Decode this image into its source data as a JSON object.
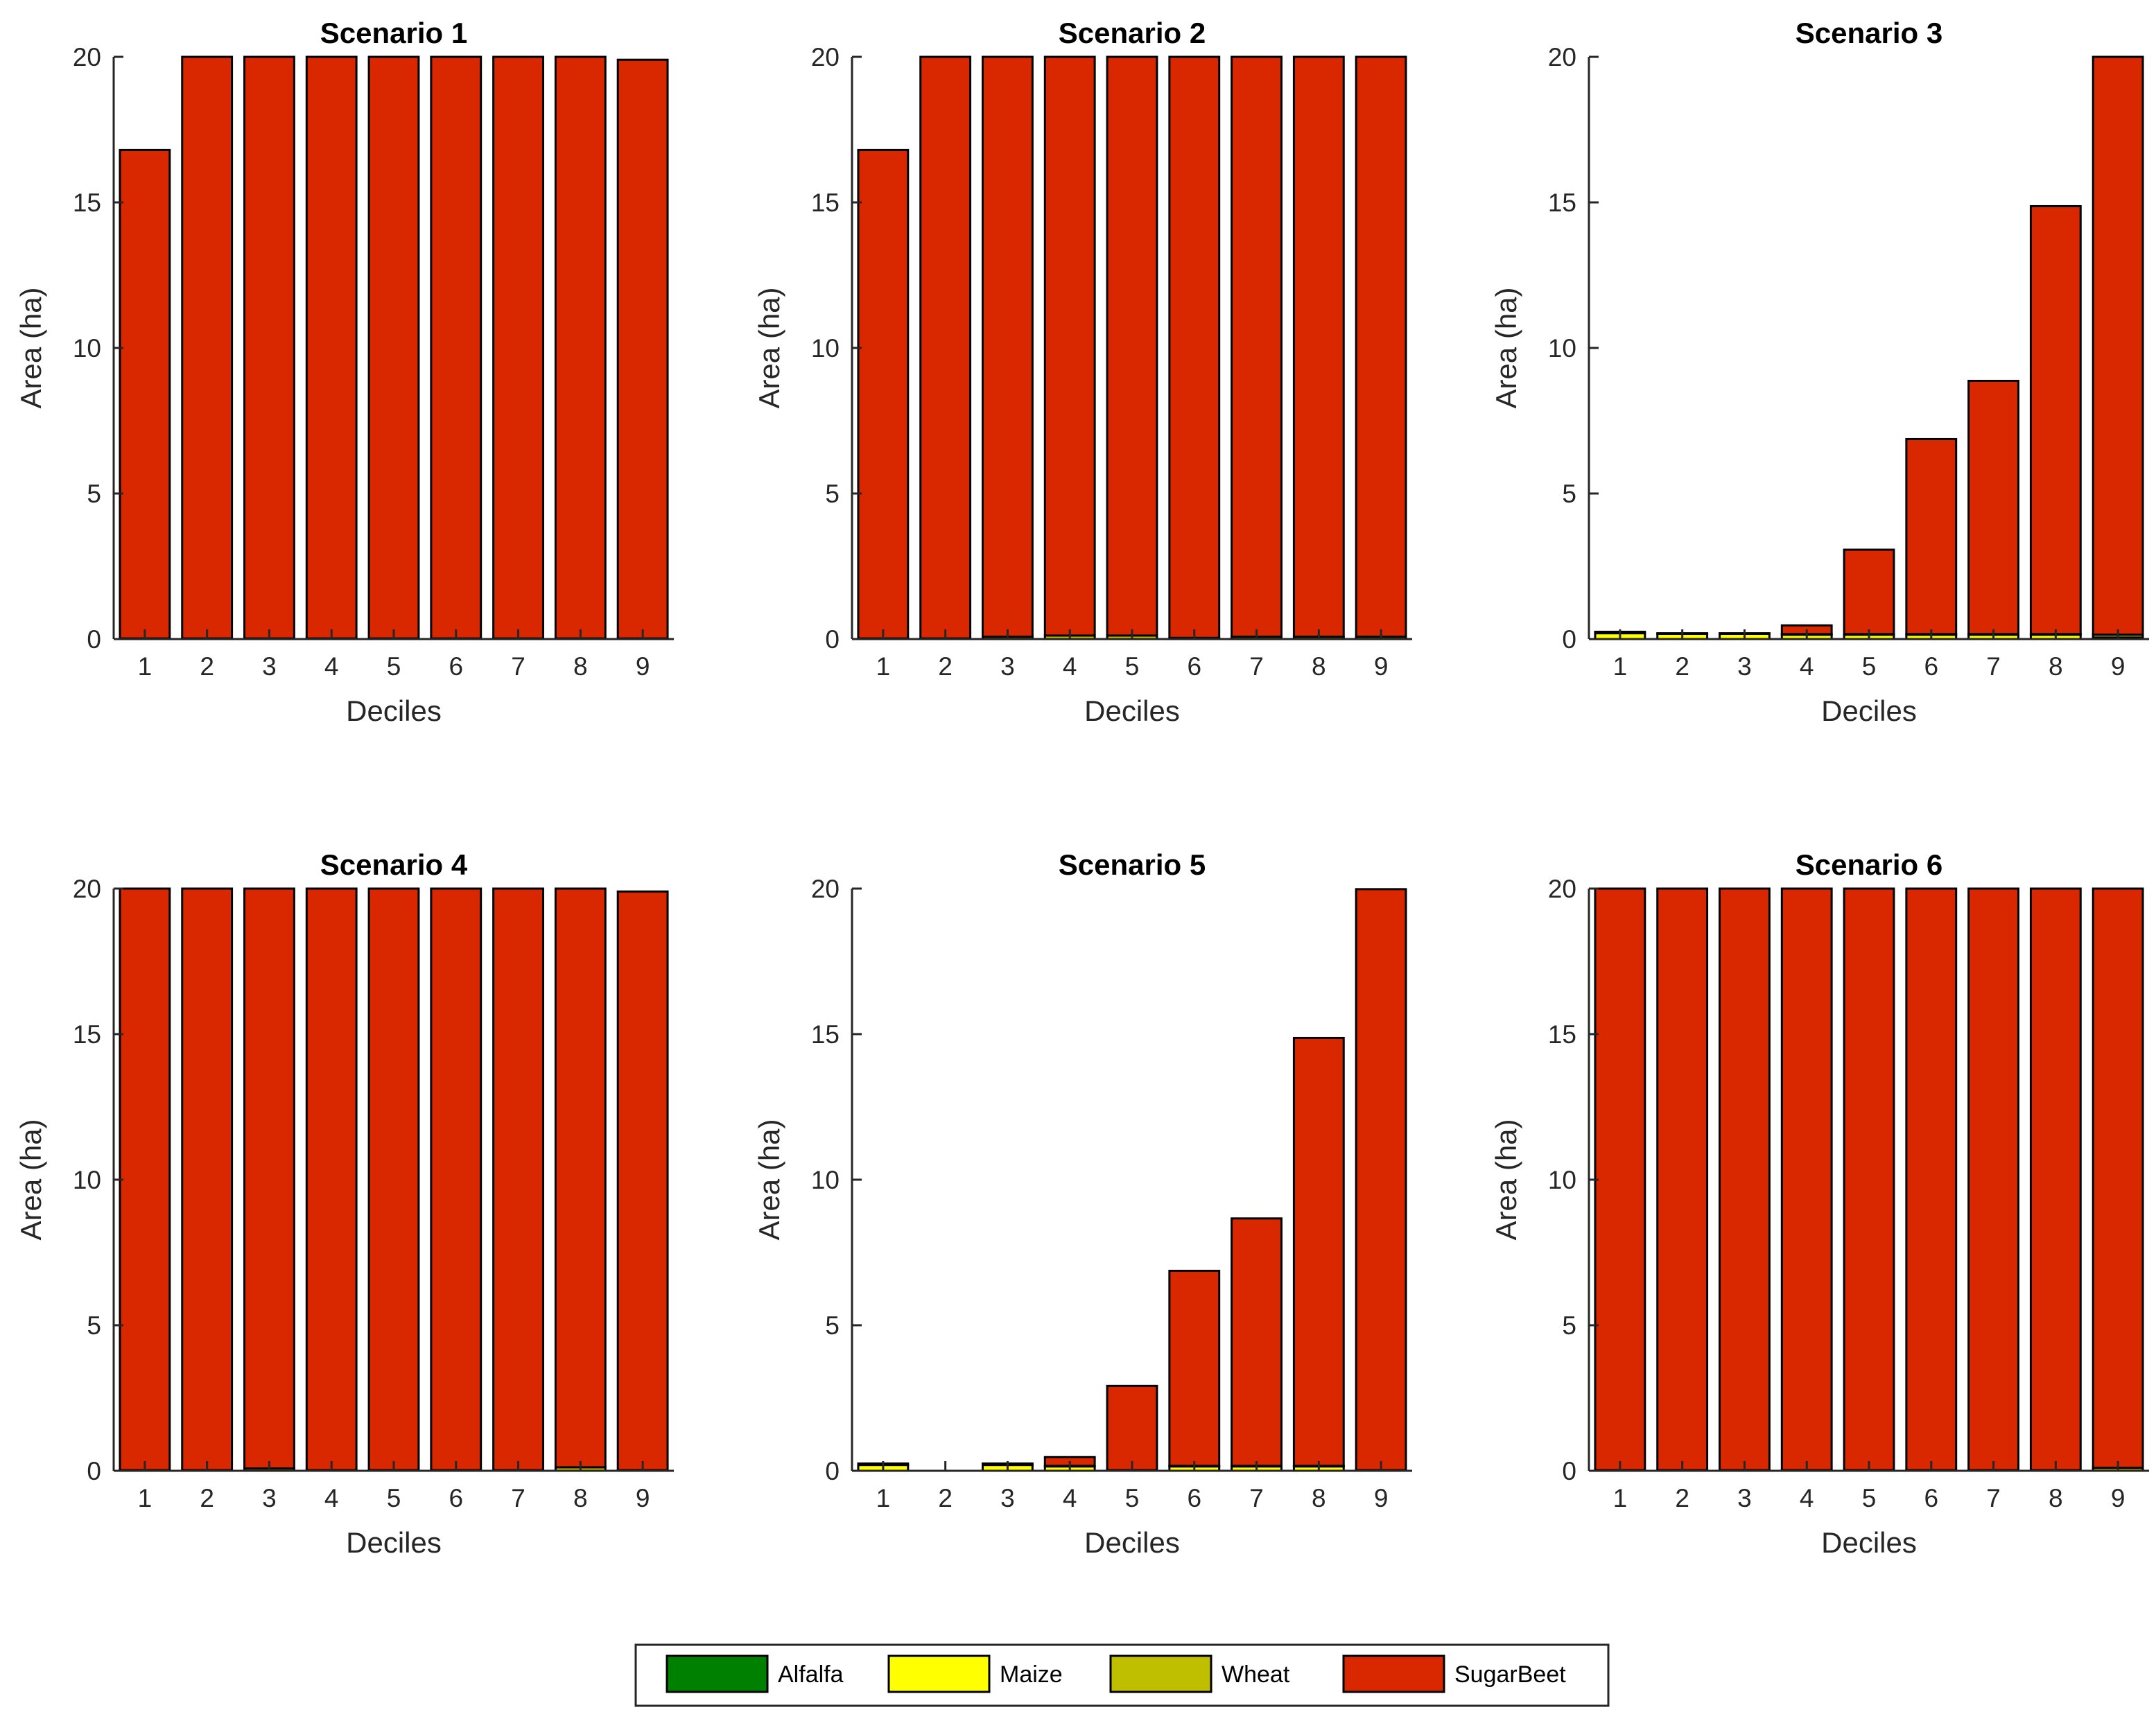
{
  "colors": {
    "Alfalfa": "#008000",
    "Maize": "#ffff00",
    "Wheat": "#bfbf00",
    "SugarBeet": "#d92800"
  },
  "legend": {
    "placement": "bottom-center",
    "entries": [
      "Alfalfa",
      "Maize",
      "Wheat",
      "SugarBeet"
    ]
  },
  "chart_data": [
    {
      "type": "bar",
      "stacked": true,
      "title": "Scenario 1",
      "xlabel": "Deciles",
      "ylabel": "Area (ha)",
      "ylim": [
        0,
        20
      ],
      "yticks": [
        0,
        5,
        10,
        15,
        20
      ],
      "categories": [
        "1",
        "2",
        "3",
        "4",
        "5",
        "6",
        "7",
        "8",
        "9"
      ],
      "series": [
        {
          "name": "Alfalfa",
          "values": [
            0,
            0,
            0,
            0,
            0,
            0,
            0,
            0,
            0
          ]
        },
        {
          "name": "Maize",
          "values": [
            0,
            0,
            0,
            0,
            0,
            0,
            0,
            0,
            0
          ]
        },
        {
          "name": "Wheat",
          "values": [
            0.02,
            0.02,
            0.02,
            0.02,
            0.02,
            0.02,
            0.02,
            0.02,
            0.02
          ]
        },
        {
          "name": "SugarBeet",
          "values": [
            16.78,
            19.98,
            19.98,
            19.98,
            19.98,
            19.98,
            19.98,
            19.98,
            19.88
          ]
        }
      ]
    },
    {
      "type": "bar",
      "stacked": true,
      "title": "Scenario 2",
      "xlabel": "Deciles",
      "ylabel": "Area (ha)",
      "ylim": [
        0,
        20
      ],
      "yticks": [
        0,
        5,
        10,
        15,
        20
      ],
      "categories": [
        "1",
        "2",
        "3",
        "4",
        "5",
        "6",
        "7",
        "8",
        "9"
      ],
      "series": [
        {
          "name": "Alfalfa",
          "values": [
            0,
            0,
            0,
            0,
            0,
            0,
            0,
            0,
            0
          ]
        },
        {
          "name": "Maize",
          "values": [
            0,
            0,
            0,
            0,
            0,
            0,
            0,
            0,
            0
          ]
        },
        {
          "name": "Wheat",
          "values": [
            0.02,
            0.02,
            0.08,
            0.12,
            0.12,
            0.04,
            0.08,
            0.08,
            0.08
          ]
        },
        {
          "name": "SugarBeet",
          "values": [
            16.78,
            19.98,
            19.92,
            19.88,
            19.88,
            19.96,
            19.92,
            19.92,
            19.92
          ]
        }
      ]
    },
    {
      "type": "bar",
      "stacked": true,
      "title": "Scenario 3",
      "xlabel": "Deciles",
      "ylabel": "Area (ha)",
      "ylim": [
        0,
        20
      ],
      "yticks": [
        0,
        5,
        10,
        15,
        20
      ],
      "categories": [
        "1",
        "2",
        "3",
        "4",
        "5",
        "6",
        "7",
        "8",
        "9"
      ],
      "series": [
        {
          "name": "Alfalfa",
          "values": [
            0,
            0,
            0,
            0,
            0,
            0,
            0,
            0,
            0
          ]
        },
        {
          "name": "Maize",
          "values": [
            0.2,
            0.18,
            0.18,
            0.15,
            0.15,
            0.15,
            0.15,
            0.15,
            0.05
          ]
        },
        {
          "name": "Wheat",
          "values": [
            0.05,
            0.02,
            0.02,
            0.02,
            0.02,
            0.02,
            0.02,
            0.02,
            0.1
          ]
        },
        {
          "name": "SugarBeet",
          "values": [
            0,
            0,
            0,
            0.3,
            2.9,
            6.7,
            8.7,
            14.7,
            19.85
          ]
        }
      ]
    },
    {
      "type": "bar",
      "stacked": true,
      "title": "Scenario 4",
      "xlabel": "Deciles",
      "ylabel": "Area (ha)",
      "ylim": [
        0,
        20
      ],
      "yticks": [
        0,
        5,
        10,
        15,
        20
      ],
      "categories": [
        "1",
        "2",
        "3",
        "4",
        "5",
        "6",
        "7",
        "8",
        "9"
      ],
      "series": [
        {
          "name": "Alfalfa",
          "values": [
            0,
            0,
            0,
            0,
            0,
            0,
            0,
            0,
            0
          ]
        },
        {
          "name": "Maize",
          "values": [
            0,
            0,
            0,
            0,
            0,
            0,
            0,
            0,
            0
          ]
        },
        {
          "name": "Wheat",
          "values": [
            0.02,
            0.02,
            0.08,
            0.02,
            0.02,
            0.02,
            0.02,
            0.12,
            0.02
          ]
        },
        {
          "name": "SugarBeet",
          "values": [
            19.98,
            19.98,
            19.92,
            19.98,
            19.98,
            19.98,
            19.98,
            19.88,
            19.88
          ]
        }
      ]
    },
    {
      "type": "bar",
      "stacked": true,
      "title": "Scenario 5",
      "xlabel": "Deciles",
      "ylabel": "Area (ha)",
      "ylim": [
        0,
        20
      ],
      "yticks": [
        0,
        5,
        10,
        15,
        20
      ],
      "categories": [
        "1",
        "2",
        "3",
        "4",
        "5",
        "6",
        "7",
        "8",
        "9"
      ],
      "series": [
        {
          "name": "Alfalfa",
          "values": [
            0,
            0,
            0,
            0,
            0,
            0,
            0,
            0,
            0
          ]
        },
        {
          "name": "Maize",
          "values": [
            0.2,
            0,
            0.2,
            0.15,
            0,
            0.15,
            0.15,
            0.15,
            0
          ]
        },
        {
          "name": "Wheat",
          "values": [
            0.05,
            0,
            0.05,
            0.02,
            0.02,
            0.02,
            0.02,
            0.02,
            0.02
          ]
        },
        {
          "name": "SugarBeet",
          "values": [
            0,
            0,
            0,
            0.3,
            2.9,
            6.7,
            8.5,
            14.7,
            19.96
          ]
        }
      ]
    },
    {
      "type": "bar",
      "stacked": true,
      "title": "Scenario 6",
      "xlabel": "Deciles",
      "ylabel": "Area (ha)",
      "ylim": [
        0,
        20
      ],
      "yticks": [
        0,
        5,
        10,
        15,
        20
      ],
      "categories": [
        "1",
        "2",
        "3",
        "4",
        "5",
        "6",
        "7",
        "8",
        "9"
      ],
      "series": [
        {
          "name": "Alfalfa",
          "values": [
            0,
            0,
            0,
            0,
            0,
            0,
            0,
            0,
            0
          ]
        },
        {
          "name": "Maize",
          "values": [
            0,
            0,
            0,
            0,
            0,
            0,
            0,
            0,
            0
          ]
        },
        {
          "name": "Wheat",
          "values": [
            0.02,
            0.02,
            0.02,
            0.02,
            0.02,
            0.02,
            0.02,
            0.02,
            0.1
          ]
        },
        {
          "name": "SugarBeet",
          "values": [
            19.98,
            19.98,
            19.98,
            19.98,
            19.98,
            19.98,
            19.98,
            19.98,
            19.9
          ]
        }
      ]
    }
  ]
}
